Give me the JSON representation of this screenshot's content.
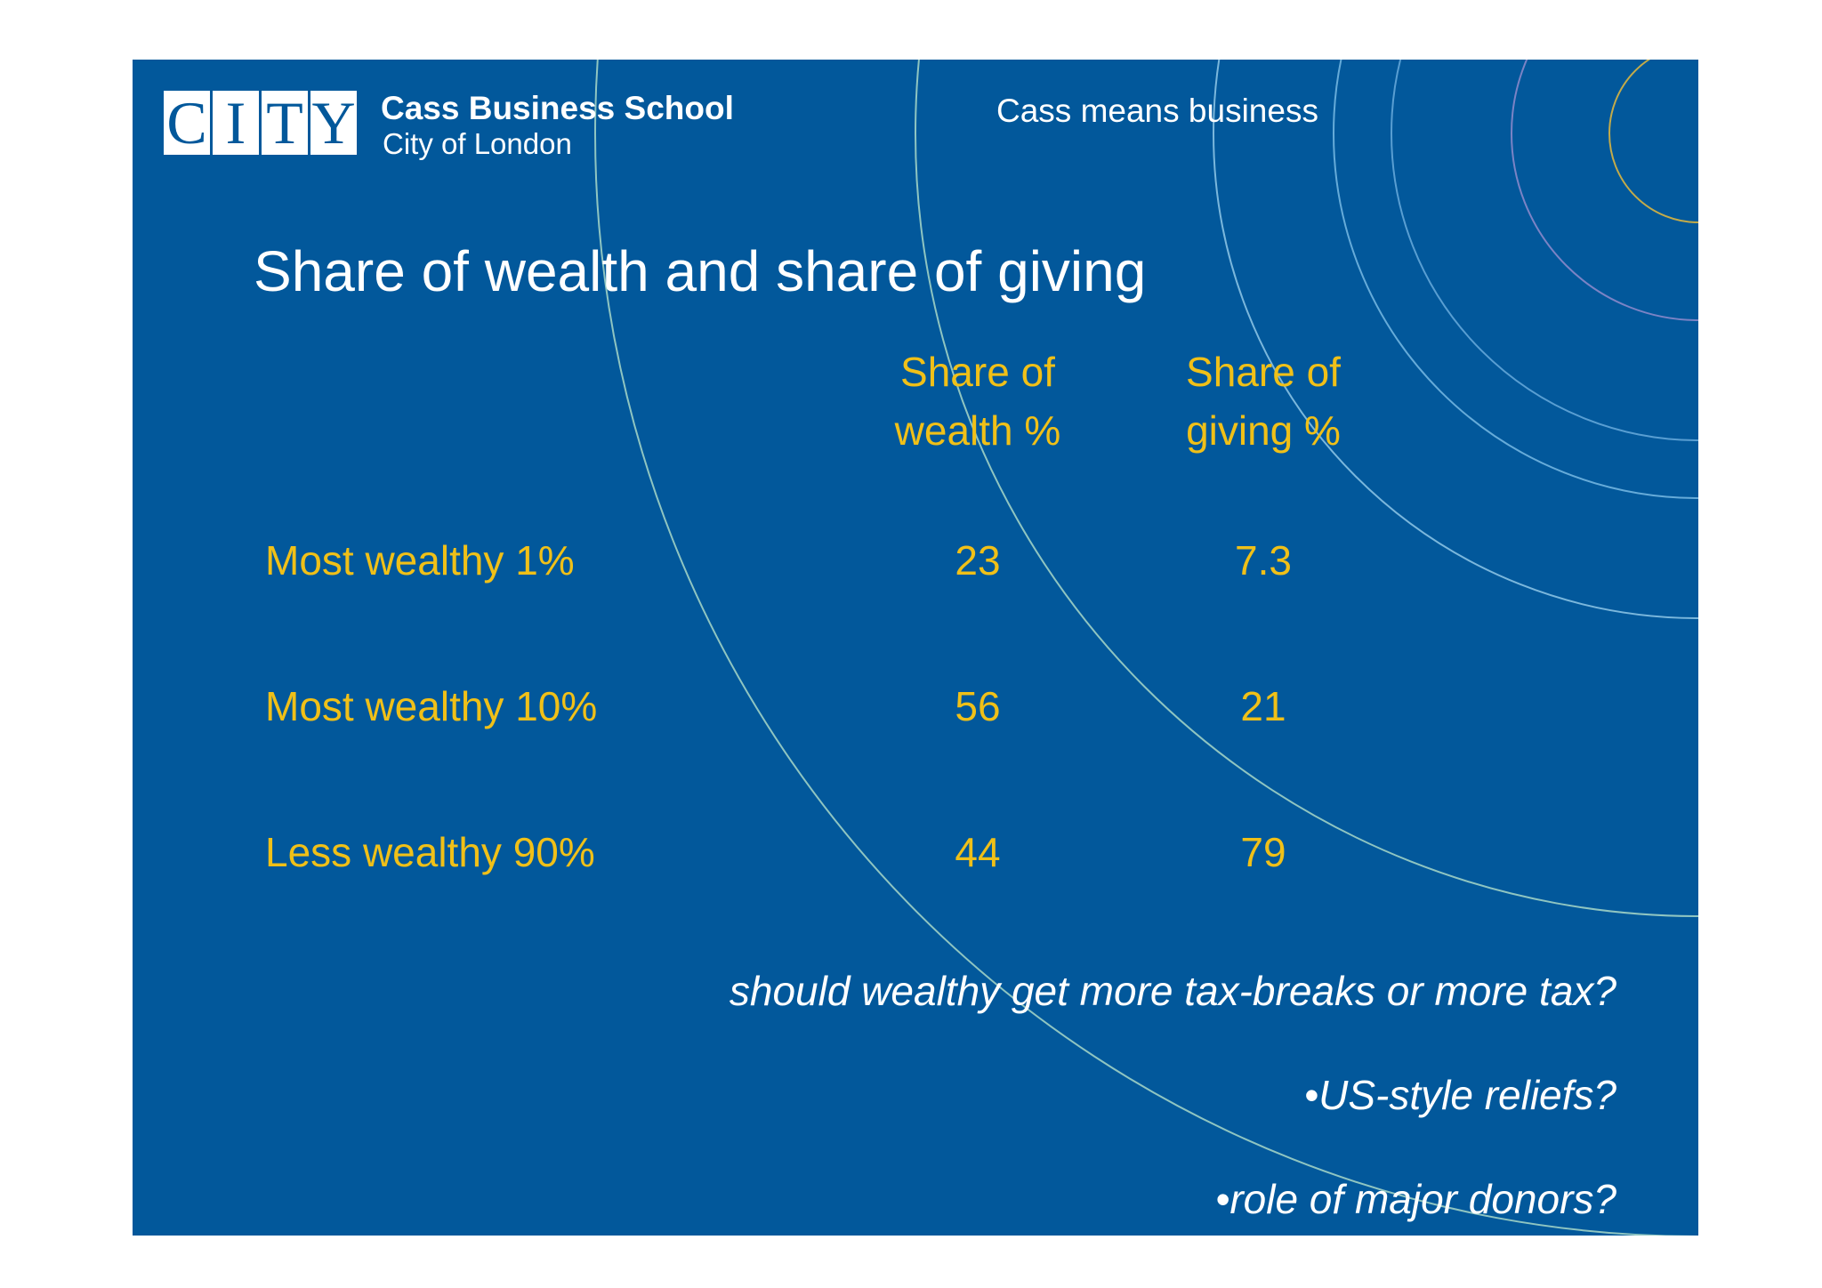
{
  "header": {
    "logo_letters": [
      "C",
      "I",
      "T",
      "Y"
    ],
    "brand_name": "Cass Business School",
    "brand_sub": "City of London",
    "tagline": "Cass means business"
  },
  "slide": {
    "title": "Share of wealth and share of giving"
  },
  "table": {
    "columns": [
      "Share of wealth %",
      "Share of giving %"
    ],
    "rows": [
      {
        "label": "Most wealthy 1%",
        "wealth": "23",
        "giving": "7.3"
      },
      {
        "label": "Most wealthy 10%",
        "wealth": "56",
        "giving": "21"
      },
      {
        "label": "Less wealthy 90%",
        "wealth": "44",
        "giving": "79"
      }
    ]
  },
  "notes": [
    "should wealthy get more tax-breaks or more tax?",
    "•US-style reliefs?",
    "•role of major donors?"
  ],
  "colors": {
    "background": "#02589b",
    "accent": "#f0c018",
    "text": "#ffffff"
  }
}
